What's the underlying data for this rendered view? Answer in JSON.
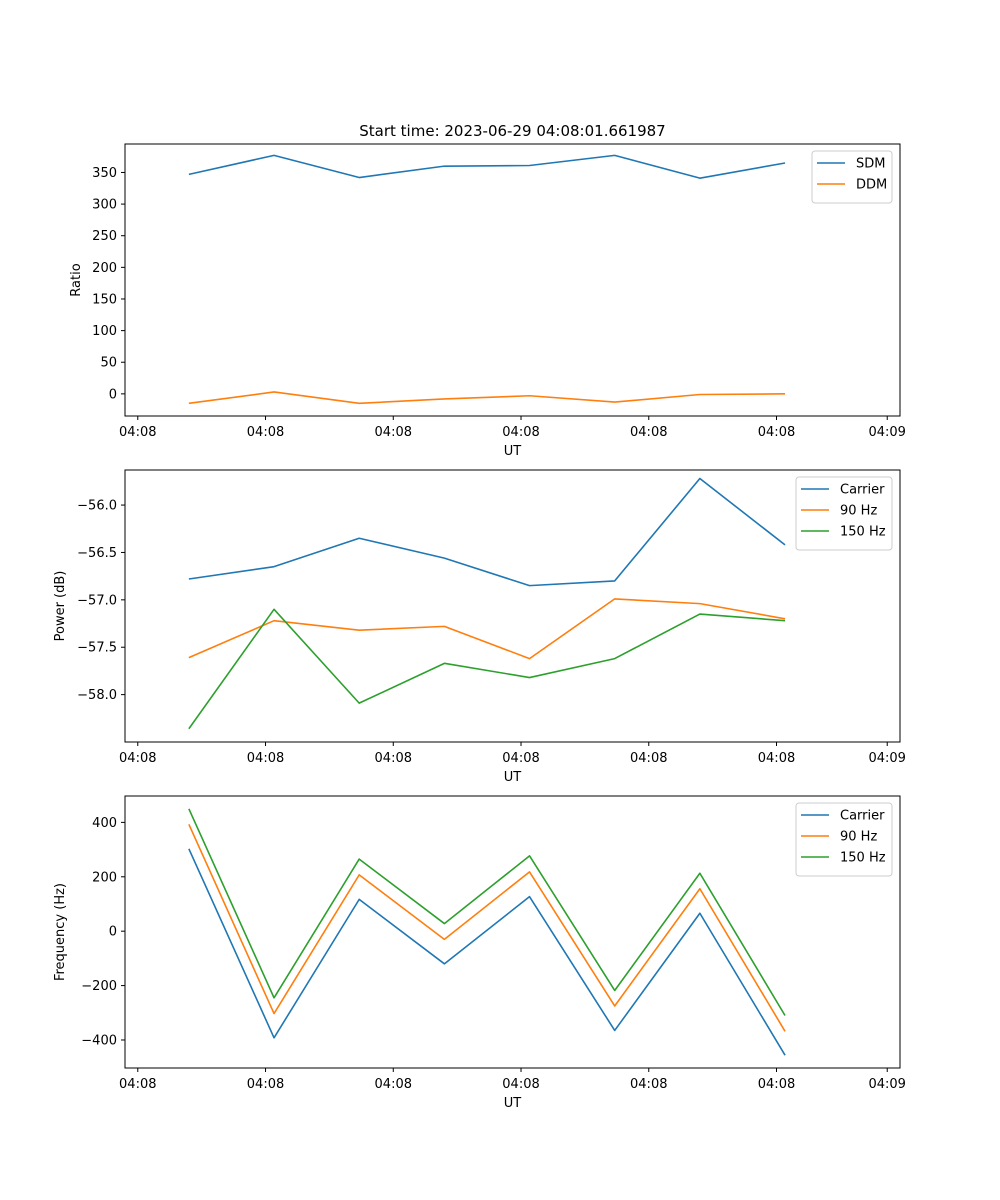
{
  "chart_data": [
    {
      "type": "line",
      "title": "Start time: 2023-06-29 04:08:01.661987",
      "xlabel": "UT",
      "ylabel": "Ratio",
      "x_tick_labels": [
        "04:08",
        "04:08",
        "04:08",
        "04:08",
        "04:08",
        "04:08",
        "04:09"
      ],
      "xlim": [
        -0.75,
        8.35
      ],
      "x": [
        0,
        1,
        2,
        3,
        4,
        5,
        6,
        7
      ],
      "yticks": [
        0,
        50,
        100,
        150,
        200,
        250,
        300,
        350
      ],
      "ylim": [
        -35,
        395
      ],
      "legend": "top-right",
      "grid": false,
      "series": [
        {
          "name": "SDM",
          "color": "#1f77b4",
          "values": [
            347,
            377,
            342,
            360,
            361,
            377,
            341,
            365
          ]
        },
        {
          "name": "DDM",
          "color": "#ff7f0e",
          "values": [
            -15,
            3,
            -15,
            -8,
            -3,
            -13,
            -1,
            0
          ]
        }
      ]
    },
    {
      "type": "line",
      "xlabel": "UT",
      "ylabel": "Power (dB)",
      "x_tick_labels": [
        "04:08",
        "04:08",
        "04:08",
        "04:08",
        "04:08",
        "04:08",
        "04:09"
      ],
      "xlim": [
        -0.75,
        8.35
      ],
      "x": [
        0,
        1,
        2,
        3,
        4,
        5,
        6,
        7
      ],
      "yticks": [
        -56.0,
        -56.5,
        -57.0,
        -57.5,
        -58.0
      ],
      "y_tick_labels": [
        "−56.0",
        "−56.5",
        "−57.0",
        "−57.5",
        "−58.0"
      ],
      "ylim": [
        -58.5,
        -55.63
      ],
      "legend": "top-right",
      "grid": false,
      "series": [
        {
          "name": "Carrier",
          "color": "#1f77b4",
          "values": [
            -56.78,
            -56.65,
            -56.35,
            -56.56,
            -56.85,
            -56.8,
            -55.72,
            -56.42
          ]
        },
        {
          "name": "90 Hz",
          "color": "#ff7f0e",
          "values": [
            -57.61,
            -57.22,
            -57.32,
            -57.28,
            -57.62,
            -56.99,
            -57.04,
            -57.2
          ]
        },
        {
          "name": "150 Hz",
          "color": "#2ca02c",
          "values": [
            -58.36,
            -57.1,
            -58.09,
            -57.67,
            -57.82,
            -57.62,
            -57.15,
            -57.22
          ]
        }
      ]
    },
    {
      "type": "line",
      "xlabel": "UT",
      "ylabel": "Frequency (Hz)",
      "x_tick_labels": [
        "04:08",
        "04:08",
        "04:08",
        "04:08",
        "04:08",
        "04:08",
        "04:09"
      ],
      "xlim": [
        -0.75,
        8.35
      ],
      "x": [
        0,
        1,
        2,
        3,
        4,
        5,
        6,
        7
      ],
      "yticks": [
        400,
        200,
        0,
        -200,
        -400
      ],
      "y_tick_labels": [
        "400",
        "200",
        "0",
        "−200",
        "−400"
      ],
      "ylim": [
        -503,
        497
      ],
      "legend": "top-right",
      "grid": false,
      "series": [
        {
          "name": "Carrier",
          "color": "#1f77b4",
          "values": [
            303,
            -392,
            117,
            -120,
            127,
            -365,
            66,
            -456
          ]
        },
        {
          "name": "90 Hz",
          "color": "#ff7f0e",
          "values": [
            393,
            -303,
            207,
            -30,
            218,
            -275,
            156,
            -368
          ]
        },
        {
          "name": "150 Hz",
          "color": "#2ca02c",
          "values": [
            450,
            -245,
            265,
            28,
            277,
            -218,
            213,
            -310
          ]
        }
      ]
    }
  ]
}
